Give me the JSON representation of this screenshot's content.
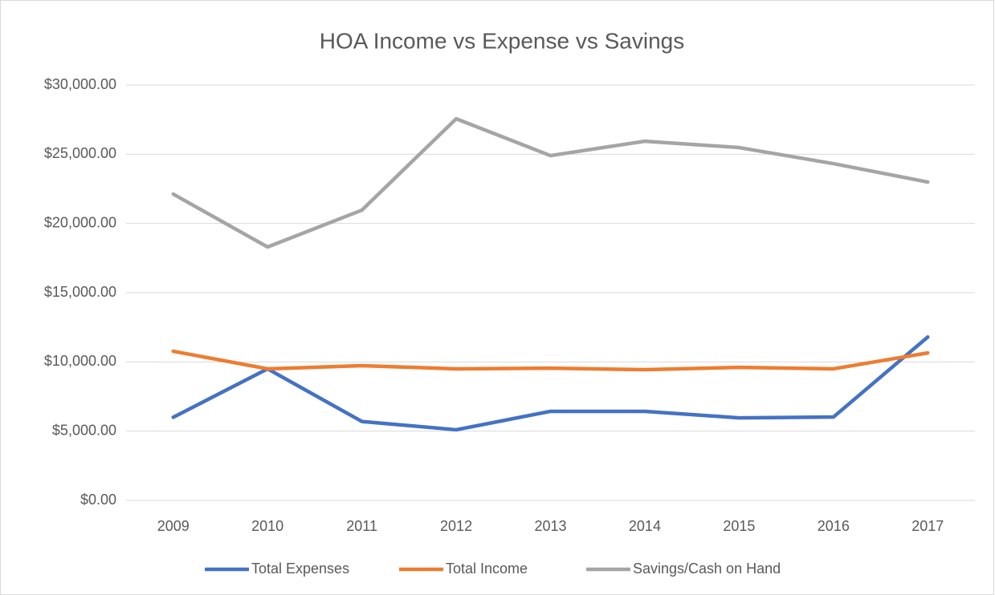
{
  "chart_data": {
    "type": "line",
    "title": "HOA Income vs Expense vs Savings",
    "categories": [
      "2009",
      "2010",
      "2011",
      "2012",
      "2013",
      "2014",
      "2015",
      "2016",
      "2017"
    ],
    "series": [
      {
        "name": "Total Expenses",
        "color": "#4472c4",
        "values": [
          6000,
          9500,
          5700,
          5100,
          6430,
          6430,
          5960,
          6020,
          11800
        ]
      },
      {
        "name": "Total Income",
        "color": "#ed7d31",
        "values": [
          10770,
          9500,
          9730,
          9500,
          9550,
          9440,
          9610,
          9500,
          10650
        ]
      },
      {
        "name": "Savings/Cash on Hand",
        "color": "#a5a5a5",
        "values": [
          22120,
          18300,
          20960,
          27560,
          24900,
          25940,
          25480,
          24320,
          22990
        ]
      }
    ],
    "ylim": [
      0,
      30000
    ],
    "yticks": [
      {
        "value": 0,
        "label": "$0.00"
      },
      {
        "value": 5000,
        "label": "$5,000.00"
      },
      {
        "value": 10000,
        "label": "$10,000.00"
      },
      {
        "value": 15000,
        "label": "$15,000.00"
      },
      {
        "value": 20000,
        "label": "$20,000.00"
      },
      {
        "value": 25000,
        "label": "$25,000.00"
      },
      {
        "value": 30000,
        "label": "$30,000.00"
      }
    ],
    "grid": true,
    "legend": "bottom"
  }
}
